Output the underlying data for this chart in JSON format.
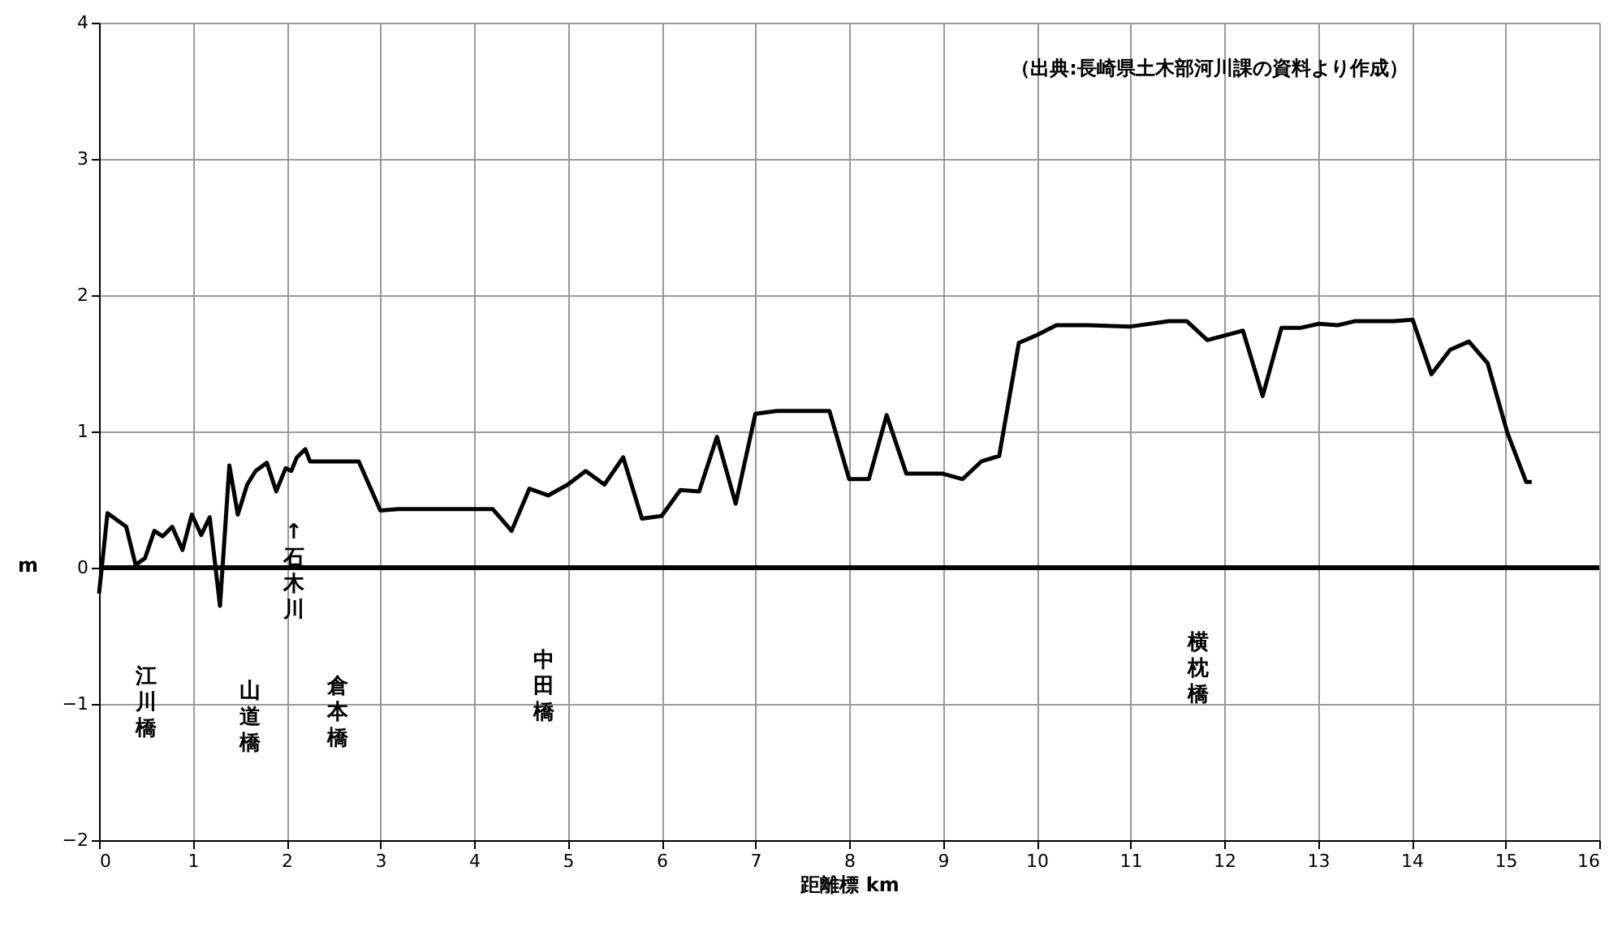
{
  "chart_data": {
    "type": "line",
    "xlabel": "距離標 km",
    "ylabel": "m",
    "x": [
      0,
      0.09,
      0.29,
      0.39,
      0.49,
      0.59,
      0.68,
      0.78,
      0.89,
      0.99,
      1.09,
      1.18,
      1.29,
      1.39,
      1.48,
      1.58,
      1.67,
      1.79,
      1.89,
      1.99,
      2.05,
      2.11,
      2.2,
      2.25,
      2.77,
      3.0,
      3.19,
      4.2,
      4.4,
      4.59,
      4.79,
      5.0,
      5.19,
      5.39,
      5.59,
      5.79,
      6.0,
      6.2,
      6.4,
      6.59,
      6.79,
      7.0,
      7.23,
      7.79,
      8.0,
      8.21,
      8.4,
      8.61,
      9.0,
      9.21,
      9.41,
      9.6,
      9.81,
      10.01,
      10.21,
      10.55,
      11.0,
      11.41,
      11.6,
      11.82,
      12.2,
      12.41,
      12.61,
      12.81,
      13.01,
      13.21,
      13.4,
      13.81,
      14.01,
      14.21,
      14.41,
      14.61,
      14.81,
      15.02,
      15.22,
      15.28
    ],
    "series": [
      {
        "color": "#000000",
        "values": [
          -0.19,
          0.4,
          0.3,
          0.02,
          0.07,
          0.27,
          0.23,
          0.3,
          0.13,
          0.39,
          0.24,
          0.37,
          -0.28,
          0.75,
          0.39,
          0.61,
          0.71,
          0.77,
          0.56,
          0.73,
          0.71,
          0.81,
          0.87,
          0.78,
          0.78,
          0.42,
          0.43,
          0.43,
          0.27,
          0.58,
          0.53,
          0.61,
          0.71,
          0.61,
          0.81,
          0.36,
          0.38,
          0.57,
          0.56,
          0.96,
          0.47,
          1.13,
          1.15,
          1.15,
          0.65,
          0.65,
          1.12,
          0.69,
          0.69,
          0.65,
          0.78,
          0.82,
          1.65,
          1.71,
          1.78,
          1.78,
          1.77,
          1.81,
          1.81,
          1.67,
          1.74,
          1.26,
          1.76,
          1.76,
          1.79,
          1.78,
          1.81,
          1.81,
          1.82,
          1.42,
          1.6,
          1.66,
          1.5,
          0.99,
          0.63,
          0.63
        ]
      }
    ],
    "xlim": [
      0,
      16
    ],
    "xticks": [
      0,
      1,
      2,
      3,
      4,
      5,
      6,
      7,
      8,
      9,
      10,
      11,
      12,
      13,
      14,
      15,
      16
    ],
    "ylim": [
      -2,
      4
    ],
    "yticks": [
      -2,
      -1,
      0,
      1,
      2,
      3,
      4
    ],
    "grid": true,
    "marker": "none",
    "line_style": "solid",
    "ref_lines": [
      {
        "axis": "y",
        "value": 0,
        "color": "#000000"
      }
    ],
    "annotations": [
      "（出典:長崎県土木部河川課の資料より作成）",
      "江川橋",
      "山道橋",
      "↑石木川",
      "倉本橋",
      "中田橋",
      "横枕橋"
    ]
  }
}
